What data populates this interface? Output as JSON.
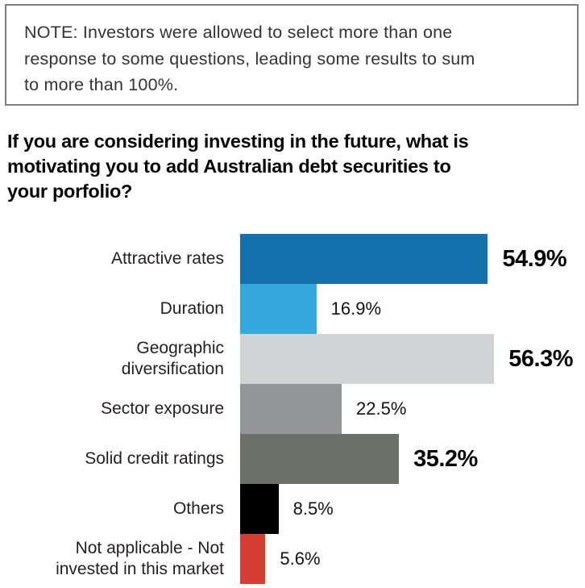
{
  "note": {
    "text": "NOTE: Investors were allowed to select more than one\nresponse to some questions, leading some results to sum\nto more than 100%."
  },
  "question": {
    "text": "If you are considering investing in the future, what is\nmotivating you to add Australian debt securities to\nyour porfolio?"
  },
  "colors": {
    "note_border": "#7c7e81",
    "heading_text": "#050505",
    "bar_dark_blue": "#1471ac",
    "bar_light_blue": "#35a8dd",
    "bar_light_gray": "#d1d3d4",
    "bar_mid_gray": "#939598",
    "bar_olive_gray": "#6b7168",
    "bar_black": "#000000",
    "bar_red": "#d63d33"
  },
  "chart_data": {
    "type": "bar",
    "orientation": "horizontal",
    "title": "If you are considering investing in the future, what is motivating you to add Australian debt securities to your porfolio?",
    "categories": [
      "Attractive rates",
      "Duration",
      "Geographic\ndiversification",
      "Sector exposure",
      "Solid credit ratings",
      "Others",
      "Not applicable - Not\ninvested in this market"
    ],
    "values": [
      54.9,
      16.9,
      56.3,
      22.5,
      35.2,
      8.5,
      5.6
    ],
    "value_labels": [
      "54.9%",
      "16.9%",
      "56.3%",
      "22.5%",
      "35.2%",
      "8.5%",
      "5.6%"
    ],
    "bar_colors": [
      "#1471ac",
      "#35a8dd",
      "#d1d3d4",
      "#939598",
      "#6b7168",
      "#000000",
      "#d63d33"
    ],
    "emphasized": [
      true,
      false,
      true,
      false,
      true,
      false,
      false
    ],
    "unit": "%",
    "xlim": [
      0,
      60
    ],
    "grid": false,
    "legend": "none",
    "xlabel": "",
    "ylabel": ""
  }
}
